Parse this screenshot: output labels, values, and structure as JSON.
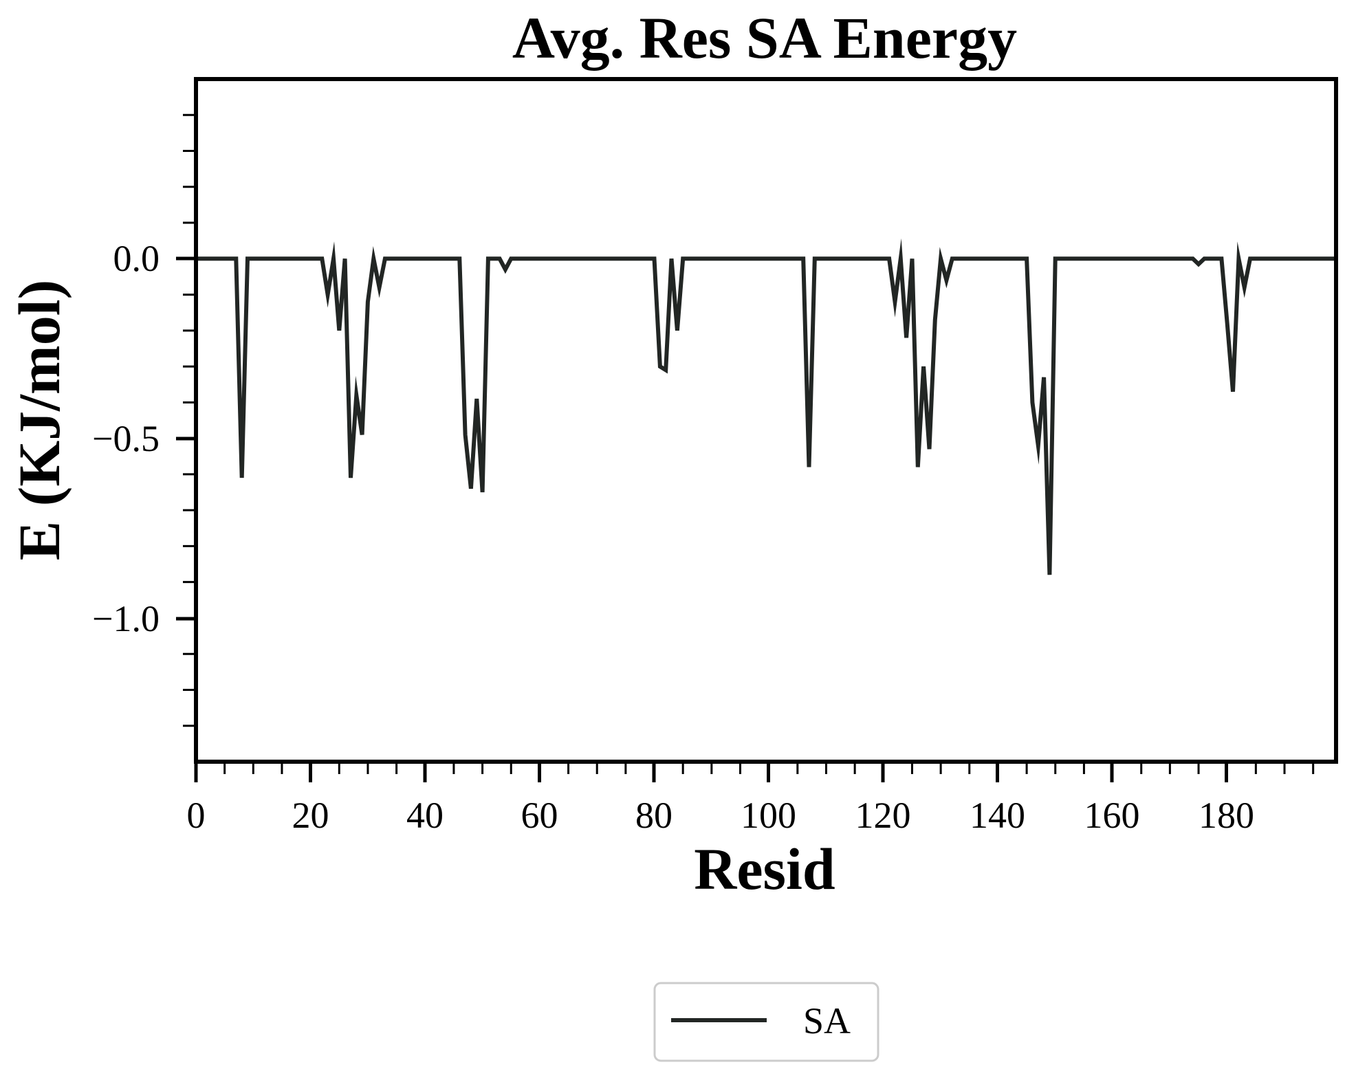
{
  "chart_data": {
    "type": "line",
    "title": "Avg. Res SA Energy",
    "xlabel": "Resid",
    "ylabel": "E (KJ/mol)",
    "xlim": [
      0,
      199
    ],
    "ylim": [
      -1.4,
      0.5
    ],
    "x_ticks": [
      "0",
      "20",
      "40",
      "60",
      "80",
      "100",
      "120",
      "140",
      "160",
      "180"
    ],
    "y_ticks": [
      "0.0",
      "−0.5",
      "−1.0"
    ],
    "legend_position": "bottom-center",
    "grid": false,
    "series": [
      {
        "name": "SA",
        "color": "#222624",
        "points": [
          [
            0,
            0
          ],
          [
            7,
            0
          ],
          [
            8,
            -0.61
          ],
          [
            9,
            0
          ],
          [
            22,
            0
          ],
          [
            23,
            -0.1
          ],
          [
            24,
            0
          ],
          [
            25,
            -0.2
          ],
          [
            26,
            0
          ],
          [
            27,
            -0.61
          ],
          [
            28,
            -0.38
          ],
          [
            29,
            -0.49
          ],
          [
            30,
            -0.12
          ],
          [
            31,
            0
          ],
          [
            32,
            -0.08
          ],
          [
            33,
            0
          ],
          [
            46,
            0
          ],
          [
            47,
            -0.49
          ],
          [
            48,
            -0.64
          ],
          [
            49,
            -0.39
          ],
          [
            50,
            -0.65
          ],
          [
            51,
            0
          ],
          [
            53,
            0
          ],
          [
            54,
            -0.03
          ],
          [
            55,
            0
          ],
          [
            80,
            0
          ],
          [
            81,
            -0.3
          ],
          [
            82,
            -0.31
          ],
          [
            83,
            0
          ],
          [
            84,
            -0.2
          ],
          [
            85,
            0
          ],
          [
            106,
            0
          ],
          [
            107,
            -0.58
          ],
          [
            108,
            0
          ],
          [
            121,
            0
          ],
          [
            122,
            -0.12
          ],
          [
            123,
            0
          ],
          [
            124,
            -0.22
          ],
          [
            125,
            0
          ],
          [
            126,
            -0.58
          ],
          [
            127,
            -0.3
          ],
          [
            128,
            -0.53
          ],
          [
            129,
            -0.17
          ],
          [
            130,
            0
          ],
          [
            131,
            -0.06
          ],
          [
            132,
            0
          ],
          [
            145,
            0
          ],
          [
            146,
            -0.4
          ],
          [
            147,
            -0.52
          ],
          [
            148,
            -0.33
          ],
          [
            149,
            -0.88
          ],
          [
            150,
            0
          ],
          [
            174,
            0
          ],
          [
            175,
            -0.015
          ],
          [
            176,
            0
          ],
          [
            179,
            0
          ],
          [
            180,
            -0.18
          ],
          [
            181,
            -0.37
          ],
          [
            182,
            0
          ],
          [
            183,
            -0.08
          ],
          [
            184,
            0
          ],
          [
            199,
            0
          ]
        ]
      }
    ]
  }
}
